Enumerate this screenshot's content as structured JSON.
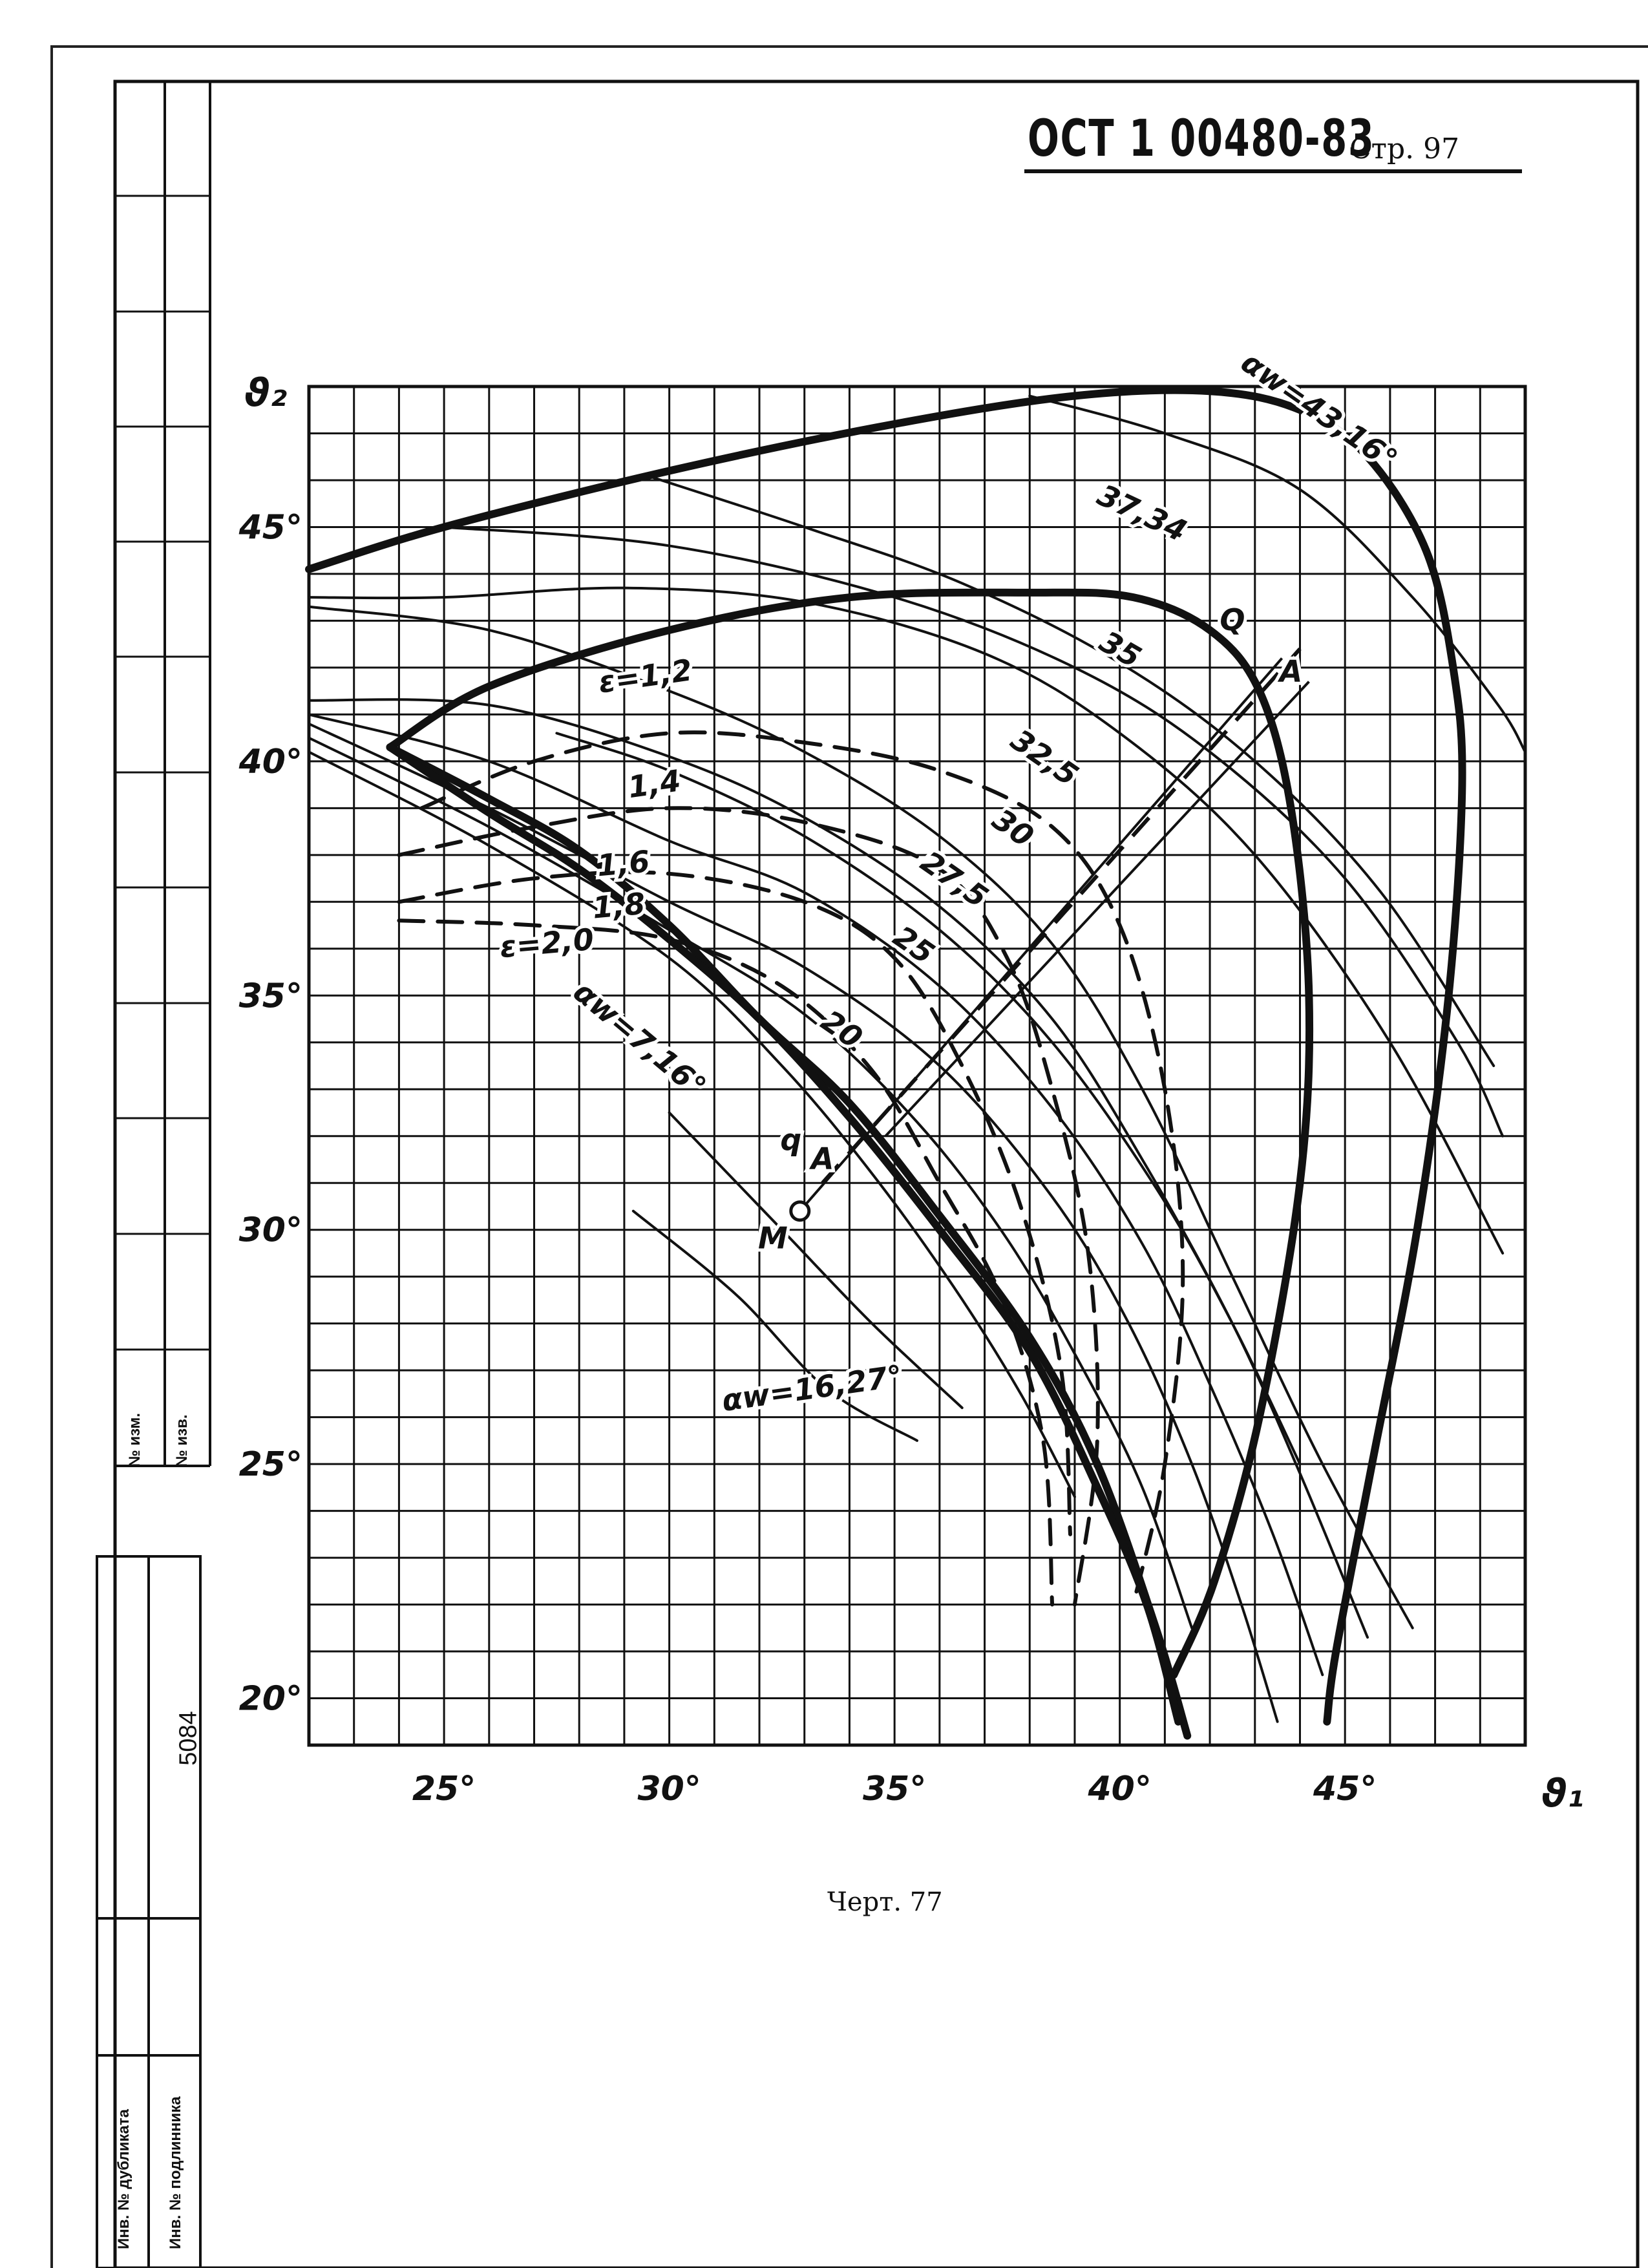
{
  "header": {
    "standard": "ОСТ 1 00480-83",
    "page_label": "Стр. 97"
  },
  "caption": "Черт. 77",
  "side_stamp": {
    "labels": [
      "№ изм.",
      "№ изв.",
      "Инв. № дубликата",
      "Инв. № подлинника"
    ],
    "number": "5084"
  },
  "chart_data": {
    "type": "line",
    "title": "",
    "xlabel": "ϑ₁",
    "ylabel": "ϑ₂",
    "xlim": [
      22,
      49
    ],
    "ylim": [
      19,
      48
    ],
    "grid": true,
    "xticks": [
      {
        "v": 25,
        "label": "25°"
      },
      {
        "v": 30,
        "label": "30°"
      },
      {
        "v": 35,
        "label": "35°"
      },
      {
        "v": 40,
        "label": "40°"
      },
      {
        "v": 45,
        "label": "45°"
      }
    ],
    "yticks": [
      {
        "v": 20,
        "label": "20°"
      },
      {
        "v": 25,
        "label": "25°"
      },
      {
        "v": 30,
        "label": "30°"
      },
      {
        "v": 35,
        "label": "35°"
      },
      {
        "v": 40,
        "label": "40°"
      },
      {
        "v": 45,
        "label": "45°"
      }
    ],
    "series": [
      {
        "name": "αw=43,16°",
        "style": "heavy",
        "points": [
          [
            22,
            44.1
          ],
          [
            25,
            45
          ],
          [
            30,
            46.2
          ],
          [
            35,
            47.2
          ],
          [
            39,
            47.8
          ],
          [
            42,
            47.9
          ],
          [
            44,
            47.5
          ],
          [
            45.5,
            46.5
          ],
          [
            46.8,
            44.5
          ],
          [
            47.4,
            42
          ],
          [
            47.6,
            39.5
          ],
          [
            47.3,
            35
          ],
          [
            46.6,
            30
          ],
          [
            45.6,
            25
          ],
          [
            44.8,
            21
          ],
          [
            44.6,
            19.5
          ]
        ]
      },
      {
        "name": "37,34",
        "style": "heavy",
        "points": [
          [
            23.8,
            40.3
          ],
          [
            26,
            41.6
          ],
          [
            30,
            42.8
          ],
          [
            34,
            43.5
          ],
          [
            38,
            43.6
          ],
          [
            40.3,
            43.5
          ],
          [
            42,
            42.8
          ],
          [
            43.1,
            41.5
          ],
          [
            43.8,
            39
          ],
          [
            44.2,
            35
          ],
          [
            44,
            31
          ],
          [
            43.1,
            26
          ],
          [
            42.1,
            22.5
          ],
          [
            41.2,
            20.5
          ]
        ]
      },
      {
        "name": "αw=16,27°",
        "style": "heavy",
        "points": [
          [
            23.8,
            40.3
          ],
          [
            26,
            39.2
          ],
          [
            28,
            38.1
          ],
          [
            30,
            36.5
          ],
          [
            32,
            34.5
          ],
          [
            34,
            32.7
          ],
          [
            36,
            30.3
          ],
          [
            38,
            27.7
          ],
          [
            39.5,
            25
          ],
          [
            40.8,
            21.5
          ],
          [
            41.5,
            19.2
          ]
        ]
      },
      {
        "name": "αw=7,16°",
        "style": "heavy",
        "points": [
          [
            23.8,
            40.3
          ],
          [
            26,
            38.9
          ],
          [
            28,
            37.7
          ],
          [
            30,
            36.2
          ],
          [
            32,
            34.5
          ],
          [
            34,
            32.4
          ],
          [
            36,
            30
          ],
          [
            38,
            27.4
          ],
          [
            39.5,
            24.5
          ],
          [
            40.6,
            22
          ],
          [
            41.3,
            19.5
          ]
        ]
      },
      {
        "name": "ε=1,2",
        "style": "dashed",
        "points": [
          [
            24.5,
            39
          ],
          [
            27,
            40
          ],
          [
            30,
            40.6
          ],
          [
            33,
            40.4
          ],
          [
            36,
            39.8
          ],
          [
            38.5,
            38.6
          ],
          [
            40,
            36.5
          ],
          [
            41,
            33
          ],
          [
            41.4,
            29
          ],
          [
            41,
            25
          ],
          [
            40.3,
            22
          ]
        ]
      },
      {
        "name": "ε=1,4",
        "style": "dashed",
        "points": [
          [
            24,
            38
          ],
          [
            27,
            38.6
          ],
          [
            30,
            39
          ],
          [
            33,
            38.7
          ],
          [
            36,
            37.7
          ],
          [
            37.5,
            35.8
          ],
          [
            38.5,
            33
          ],
          [
            39.3,
            29.5
          ],
          [
            39.5,
            25.5
          ],
          [
            39,
            22
          ]
        ]
      },
      {
        "name": "ε=1,6",
        "style": "dashed",
        "points": [
          [
            24,
            37
          ],
          [
            27,
            37.5
          ],
          [
            30,
            37.6
          ],
          [
            33,
            37
          ],
          [
            35,
            35.8
          ],
          [
            36.5,
            33.5
          ],
          [
            37.8,
            30.5
          ],
          [
            38.7,
            27
          ],
          [
            38.9,
            23.5
          ]
        ]
      },
      {
        "name": "ε=2,0",
        "style": "dashed",
        "points": [
          [
            24,
            36.6
          ],
          [
            27,
            36.5
          ],
          [
            30,
            36.2
          ],
          [
            32.5,
            35.2
          ],
          [
            34.5,
            33.4
          ],
          [
            36,
            31
          ],
          [
            37.4,
            28.5
          ],
          [
            38.3,
            25.5
          ],
          [
            38.5,
            22
          ]
        ]
      },
      {
        "name": "35",
        "style": "thin",
        "points": [
          [
            22,
            43.3
          ],
          [
            26,
            42.8
          ],
          [
            30,
            41.5
          ],
          [
            33,
            40.2
          ],
          [
            36,
            38.4
          ],
          [
            38.5,
            36.1
          ],
          [
            40.5,
            33
          ],
          [
            42.5,
            29
          ],
          [
            44.5,
            25
          ],
          [
            46.5,
            21.5
          ]
        ]
      },
      {
        "name": "32,5",
        "style": "thin",
        "points": [
          [
            22,
            41.3
          ],
          [
            26,
            41.2
          ],
          [
            30,
            40.1
          ],
          [
            33,
            38.8
          ],
          [
            36,
            36.9
          ],
          [
            38.5,
            34.5
          ],
          [
            40.5,
            31.5
          ],
          [
            42.5,
            28
          ],
          [
            44,
            24.8
          ],
          [
            45.5,
            21.3
          ]
        ]
      },
      {
        "name": "30",
        "style": "thin",
        "points": [
          [
            22,
            41
          ],
          [
            26,
            40
          ],
          [
            30,
            38.3
          ],
          [
            33,
            37.2
          ],
          [
            36,
            35.2
          ],
          [
            38.5,
            32.6
          ],
          [
            40.5,
            29.7
          ],
          [
            42,
            26.7
          ],
          [
            43.4,
            23.5
          ],
          [
            44.5,
            20.5
          ]
        ]
      },
      {
        "name": "27,5",
        "style": "thin",
        "points": [
          [
            22,
            40.8
          ],
          [
            26,
            39
          ],
          [
            30,
            37
          ],
          [
            33,
            35.6
          ],
          [
            36,
            33.5
          ],
          [
            38.5,
            30.7
          ],
          [
            40.2,
            28
          ],
          [
            41.6,
            25
          ],
          [
            42.7,
            22
          ],
          [
            43.5,
            19.5
          ]
        ]
      },
      {
        "name": "25",
        "style": "thin",
        "points": [
          [
            22,
            40.5
          ],
          [
            26,
            38.6
          ],
          [
            30,
            36.4
          ],
          [
            33,
            34.6
          ],
          [
            35.5,
            32.3
          ],
          [
            37.5,
            29.8
          ],
          [
            39.2,
            27
          ],
          [
            40.5,
            24.5
          ],
          [
            41.6,
            21.5
          ]
        ]
      },
      {
        "name": "20",
        "style": "thin",
        "points": [
          [
            22,
            40.2
          ],
          [
            26,
            38.2
          ],
          [
            30,
            35.8
          ],
          [
            32.5,
            33.5
          ],
          [
            34.5,
            31.2
          ],
          [
            36.3,
            28.8
          ],
          [
            37.8,
            26.5
          ],
          [
            39,
            24.3
          ]
        ]
      },
      {
        "name": "",
        "style": "thin",
        "points": [
          [
            22,
            43.5
          ],
          [
            25,
            43.5
          ],
          [
            29,
            43.7
          ],
          [
            33,
            43.4
          ],
          [
            37,
            42.3
          ],
          [
            40,
            40.6
          ],
          [
            43,
            38
          ],
          [
            46,
            34
          ],
          [
            48.5,
            29.5
          ]
        ]
      },
      {
        "name": "",
        "style": "thin",
        "points": [
          [
            25,
            45
          ],
          [
            30,
            44.6
          ],
          [
            35,
            43.5
          ],
          [
            39,
            42
          ],
          [
            42,
            40.2
          ],
          [
            45,
            37.5
          ],
          [
            47.5,
            34
          ],
          [
            48.5,
            32
          ]
        ]
      },
      {
        "name": "",
        "style": "thin",
        "points": [
          [
            29.5,
            46.1
          ],
          [
            33,
            45
          ],
          [
            36.5,
            43.8
          ],
          [
            40,
            42.1
          ],
          [
            43,
            40
          ],
          [
            45.8,
            37.2
          ],
          [
            48.3,
            33.5
          ]
        ]
      },
      {
        "name": "",
        "style": "thin",
        "points": [
          [
            38,
            47.8
          ],
          [
            41,
            47
          ],
          [
            44,
            45.8
          ],
          [
            46.5,
            43.5
          ],
          [
            48.4,
            41.2
          ],
          [
            49,
            40.2
          ]
        ]
      },
      {
        "name": "",
        "style": "thin",
        "points": [
          [
            27.5,
            40.6
          ],
          [
            30,
            39.8
          ],
          [
            33,
            38.4
          ],
          [
            36,
            36.4
          ],
          [
            38.5,
            34
          ],
          [
            40.8,
            30.9
          ],
          [
            42.5,
            28
          ],
          [
            44,
            25
          ]
        ]
      },
      {
        "name": "",
        "style": "thin",
        "points": [
          [
            29.2,
            30.4
          ],
          [
            31.5,
            28.6
          ],
          [
            33.5,
            26.6
          ],
          [
            35.5,
            25.5
          ]
        ]
      },
      {
        "name": "",
        "style": "thin",
        "points": [
          [
            30,
            32.5
          ],
          [
            32.5,
            30
          ],
          [
            34.5,
            28
          ],
          [
            36.5,
            26.2
          ]
        ]
      }
    ],
    "auxiliary_lines": [
      {
        "label": "",
        "style": "thin",
        "points": [
          [
            32.9,
            30.4
          ],
          [
            43.6,
            42.2
          ]
        ]
      },
      {
        "label": "",
        "style": "thin",
        "points": [
          [
            34.8,
            32
          ],
          [
            44.2,
            41.7
          ]
        ]
      },
      {
        "label": "",
        "style": "dashed",
        "points": [
          [
            33.4,
            31
          ],
          [
            44,
            42.4
          ]
        ]
      }
    ],
    "annotations": [
      {
        "text": "αw=43,16°",
        "x": 44.3,
        "y": 47.3,
        "rotate": 35
      },
      {
        "text": "37,34",
        "x": 40.4,
        "y": 45.1,
        "rotate": 25
      },
      {
        "text": "35",
        "x": 39.9,
        "y": 42.2,
        "rotate": 30
      },
      {
        "text": "Q",
        "x": 42.5,
        "y": 42.8,
        "rotate": 0
      },
      {
        "text": "A",
        "x": 43.8,
        "y": 41.7,
        "rotate": 0
      },
      {
        "text": "ε=1,2",
        "x": 29.5,
        "y": 41.6,
        "rotate": -8
      },
      {
        "text": "32,5",
        "x": 38.2,
        "y": 39.9,
        "rotate": 35
      },
      {
        "text": "1,4",
        "x": 29.7,
        "y": 39.3,
        "rotate": -8
      },
      {
        "text": "30",
        "x": 37.5,
        "y": 38.4,
        "rotate": 35
      },
      {
        "text": "1,6",
        "x": 29,
        "y": 37.6,
        "rotate": -5
      },
      {
        "text": "27,5",
        "x": 36.2,
        "y": 37.3,
        "rotate": 35
      },
      {
        "text": "1,8",
        "x": 28.9,
        "y": 36.7,
        "rotate": -5
      },
      {
        "text": "ε=2,0",
        "x": 27.3,
        "y": 35.9,
        "rotate": -5
      },
      {
        "text": "25",
        "x": 35.3,
        "y": 35.9,
        "rotate": 35
      },
      {
        "text": "20",
        "x": 33.7,
        "y": 34.1,
        "rotate": 35
      },
      {
        "text": "αw=7,16°",
        "x": 29.2,
        "y": 33.9,
        "rotate": 40
      },
      {
        "text": "q",
        "x": 32.7,
        "y": 31.7,
        "rotate": 0
      },
      {
        "text": "A",
        "x": 33.4,
        "y": 31.3,
        "rotate": 0
      },
      {
        "text": "M",
        "x": 32.3,
        "y": 29.6,
        "rotate": 0
      },
      {
        "text": "αw=16,27°",
        "x": 33.2,
        "y": 26.4,
        "rotate": -8
      }
    ],
    "points": [
      {
        "label": "M",
        "x": 32.9,
        "y": 30.4,
        "marker": "open"
      }
    ]
  }
}
